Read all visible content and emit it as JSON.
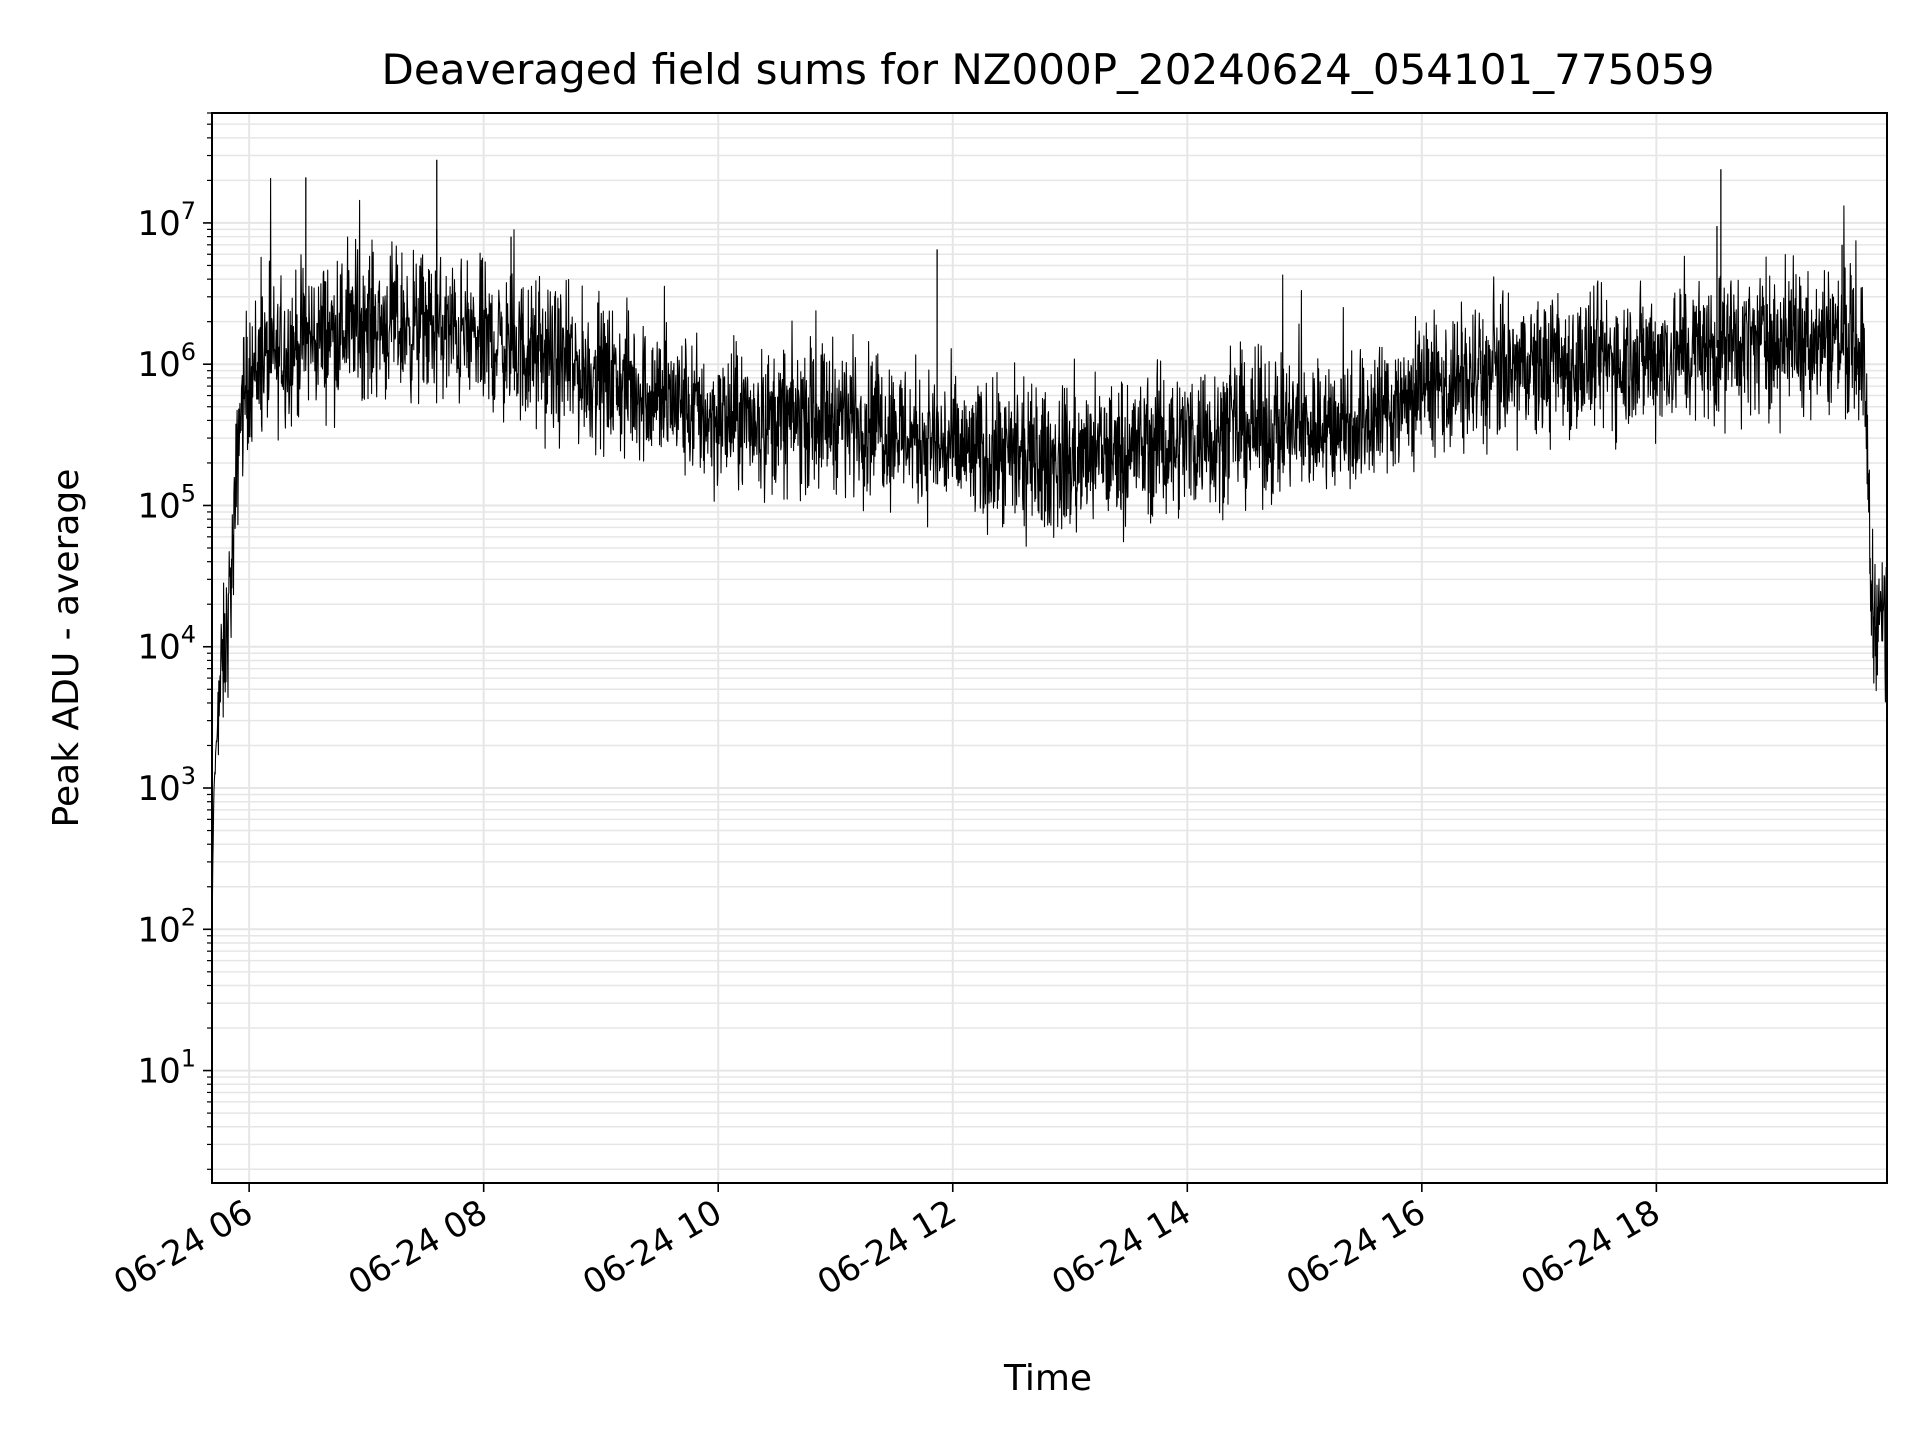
{
  "chart_data": {
    "type": "line",
    "title": "Deaveraged field sums for NZ000P_20240624_054101_775059",
    "xlabel": "Time",
    "ylabel": "Peak ADU - average",
    "yscale": "log",
    "ylim": [
      1.6,
      60000000
    ],
    "xlim": [
      "06-24 05:41",
      "06-24 19:58"
    ],
    "grid": true,
    "line_color": "#000000",
    "grid_color": "#e6e6e6",
    "x_ticks": [
      {
        "t": "06-24 06:00",
        "label": "06-24 06"
      },
      {
        "t": "06-24 08:00",
        "label": "06-24 08"
      },
      {
        "t": "06-24 10:00",
        "label": "06-24 10"
      },
      {
        "t": "06-24 12:00",
        "label": "06-24 12"
      },
      {
        "t": "06-24 14:00",
        "label": "06-24 14"
      },
      {
        "t": "06-24 16:00",
        "label": "06-24 16"
      },
      {
        "t": "06-24 18:00",
        "label": "06-24 18"
      }
    ],
    "y_ticks": [
      {
        "value": 10,
        "base": "10",
        "exp": "1"
      },
      {
        "value": 100,
        "base": "10",
        "exp": "2"
      },
      {
        "value": 1000,
        "base": "10",
        "exp": "3"
      },
      {
        "value": 10000,
        "base": "10",
        "exp": "4"
      },
      {
        "value": 100000,
        "base": "10",
        "exp": "5"
      },
      {
        "value": 1000000,
        "base": "10",
        "exp": "6"
      },
      {
        "value": 10000000,
        "base": "10",
        "exp": "7"
      }
    ],
    "series": [
      {
        "description": "median trend (noisy signal around these levels)",
        "points": [
          {
            "t": "06-24 05:41",
            "y": 100
          },
          {
            "t": "06-24 05:42",
            "y": 1000
          },
          {
            "t": "06-24 05:45",
            "y": 5000
          },
          {
            "t": "06-24 05:48",
            "y": 10000
          },
          {
            "t": "06-24 05:52",
            "y": 50000
          },
          {
            "t": "06-24 05:55",
            "y": 400000
          },
          {
            "t": "06-24 06:00",
            "y": 900000
          },
          {
            "t": "06-24 06:30",
            "y": 1500000
          },
          {
            "t": "06-24 07:00",
            "y": 2000000
          },
          {
            "t": "06-24 07:30",
            "y": 1800000
          },
          {
            "t": "06-24 08:00",
            "y": 1500000
          },
          {
            "t": "06-24 08:30",
            "y": 1100000
          },
          {
            "t": "06-24 09:00",
            "y": 800000
          },
          {
            "t": "06-24 09:30",
            "y": 600000
          },
          {
            "t": "06-24 10:00",
            "y": 400000
          },
          {
            "t": "06-24 10:30",
            "y": 400000
          },
          {
            "t": "06-24 11:00",
            "y": 450000
          },
          {
            "t": "06-24 11:30",
            "y": 350000
          },
          {
            "t": "06-24 12:00",
            "y": 250000
          },
          {
            "t": "06-24 12:30",
            "y": 200000
          },
          {
            "t": "06-24 13:00",
            "y": 200000
          },
          {
            "t": "06-24 13:30",
            "y": 250000
          },
          {
            "t": "06-24 14:00",
            "y": 300000
          },
          {
            "t": "06-24 14:30",
            "y": 350000
          },
          {
            "t": "06-24 15:00",
            "y": 350000
          },
          {
            "t": "06-24 15:30",
            "y": 400000
          },
          {
            "t": "06-24 16:00",
            "y": 650000
          },
          {
            "t": "06-24 16:30",
            "y": 800000
          },
          {
            "t": "06-24 17:00",
            "y": 950000
          },
          {
            "t": "06-24 17:30",
            "y": 1050000
          },
          {
            "t": "06-24 18:00",
            "y": 1150000
          },
          {
            "t": "06-24 18:30",
            "y": 1300000
          },
          {
            "t": "06-24 19:00",
            "y": 1500000
          },
          {
            "t": "06-24 19:30",
            "y": 1600000
          },
          {
            "t": "06-24 19:45",
            "y": 1300000
          },
          {
            "t": "06-24 19:48",
            "y": 300000
          },
          {
            "t": "06-24 19:50",
            "y": 20000
          },
          {
            "t": "06-24 19:58",
            "y": 15000
          }
        ],
        "spikes": [
          {
            "t": "06-24 06:29",
            "y": 21000000
          },
          {
            "t": "06-24 07:36",
            "y": 28000000
          },
          {
            "t": "06-24 07:36",
            "y": 9000000
          },
          {
            "t": "06-24 08:14",
            "y": 8000000
          },
          {
            "t": "06-24 11:52",
            "y": 6500000
          },
          {
            "t": "06-24 18:33",
            "y": 24000000
          },
          {
            "t": "06-24 18:31",
            "y": 9500000
          },
          {
            "t": "06-24 19:35",
            "y": 7000000
          }
        ]
      }
    ]
  }
}
